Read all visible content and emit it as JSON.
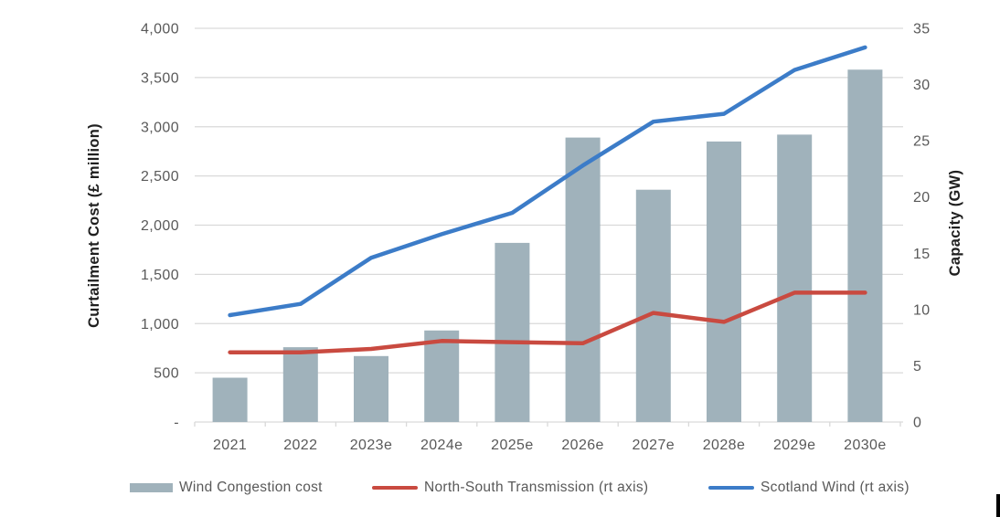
{
  "chart_data": {
    "type": "combo_bar_line",
    "title": "",
    "categories": [
      "2021",
      "2022",
      "2023e",
      "2024e",
      "2025e",
      "2026e",
      "2027e",
      "2028e",
      "2029e",
      "2030e"
    ],
    "series": [
      {
        "name": "Wind Congestion cost",
        "type": "bar",
        "axis": "left",
        "color": "#A0B2BB",
        "values": [
          450,
          760,
          670,
          930,
          1820,
          2890,
          2360,
          2850,
          2920,
          3580
        ]
      },
      {
        "name": "North-South Transmission (rt axis)",
        "type": "line",
        "axis": "right",
        "color": "#C94A40",
        "values": [
          6.2,
          6.2,
          6.5,
          7.2,
          7.1,
          7.0,
          9.7,
          8.9,
          11.5,
          11.5
        ]
      },
      {
        "name": "Scotland Wind (rt axis)",
        "type": "line",
        "axis": "right",
        "color": "#3C7CC8",
        "values": [
          9.5,
          10.5,
          14.6,
          16.7,
          18.6,
          22.8,
          26.7,
          27.4,
          31.3,
          33.3
        ]
      }
    ],
    "left_axis": {
      "title": "Curtailment Cost (£ million)",
      "min": 0,
      "max": 4000,
      "tick_labels": [
        "4,000",
        "3,500",
        "3,000",
        "2,500",
        "2,000",
        "1,500",
        "1,000",
        "500",
        "-"
      ]
    },
    "right_axis": {
      "title": "Capacity (GW)",
      "min": 0,
      "max": 35,
      "tick_labels": [
        "35",
        "30",
        "25",
        "20",
        "15",
        "10",
        "5",
        "0"
      ]
    },
    "grid": true,
    "legend_position": "bottom",
    "colors": {
      "gridline": "#D9D9D9",
      "tick_text": "#595959",
      "axis_title_text": "#1f1f1f"
    }
  }
}
